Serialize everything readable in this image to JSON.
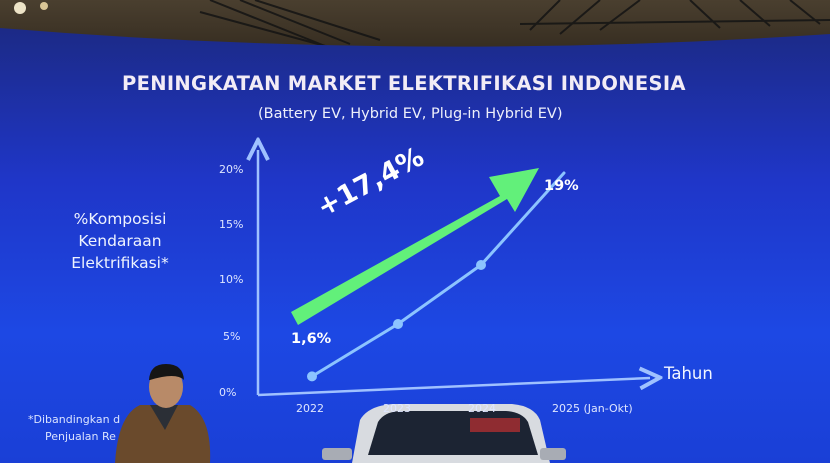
{
  "slide": {
    "title": "PENINGKATAN MARKET ELEKTRIFIKASI INDONESIA",
    "subtitle": "(Battery EV, Hybrid EV, Plug-in Hybrid EV)",
    "footnote_line1": "*Dibandingkan d",
    "footnote_line2": "Penjualan Re"
  },
  "chart_data": {
    "type": "line",
    "title": "PENINGKATAN MARKET ELEKTRIFIKASI INDONESIA",
    "subtitle": "(Battery EV, Hybrid EV, Plug-in Hybrid EV)",
    "ylabel_lines": [
      "%Komposisi",
      "Kendaraan",
      "Elektrifikasi*"
    ],
    "xlabel": "Tahun",
    "y_ticks": [
      "0%",
      "5%",
      "10%",
      "15%",
      "20%"
    ],
    "x_ticks": [
      "2022",
      "2023",
      "2024",
      "2025 (Jan-Okt)"
    ],
    "ylim": [
      0,
      20
    ],
    "series": [
      {
        "values": [
          1.6,
          6,
          11,
          19
        ]
      }
    ],
    "labels": {
      "first": "1,6%",
      "last": "19%"
    },
    "growth_label": "+17,4%",
    "grid": false,
    "colors": {
      "line": "#8cc4ff",
      "arrow": "#62f07a",
      "axis": "#9fc1ff"
    }
  }
}
